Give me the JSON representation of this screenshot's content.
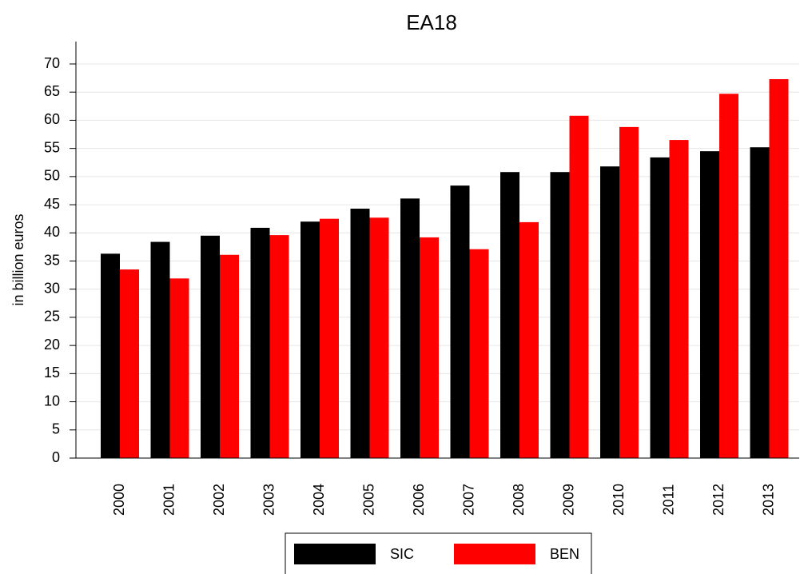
{
  "chart_data": {
    "type": "bar",
    "title": "EA18",
    "y_label": "in billion euros",
    "categories": [
      "2000",
      "2001",
      "2002",
      "2003",
      "2004",
      "2005",
      "2006",
      "2007",
      "2008",
      "2009",
      "2010",
      "2011",
      "2012",
      "2013"
    ],
    "series": [
      {
        "name": "SIC",
        "color": "#000000",
        "values": [
          36.3,
          38.4,
          39.5,
          40.9,
          42.0,
          44.3,
          46.1,
          48.4,
          50.8,
          50.8,
          51.8,
          53.4,
          54.5,
          55.2
        ]
      },
      {
        "name": "BEN",
        "color": "#ff0000",
        "values": [
          33.5,
          31.9,
          36.1,
          39.6,
          42.5,
          42.7,
          39.2,
          37.1,
          41.9,
          60.8,
          58.8,
          56.5,
          64.7,
          67.3
        ]
      }
    ],
    "ylim": [
      0,
      70
    ],
    "yticks": [
      0,
      5,
      10,
      15,
      20,
      25,
      30,
      35,
      40,
      45,
      50,
      55,
      60,
      65,
      70
    ],
    "grid": true
  }
}
